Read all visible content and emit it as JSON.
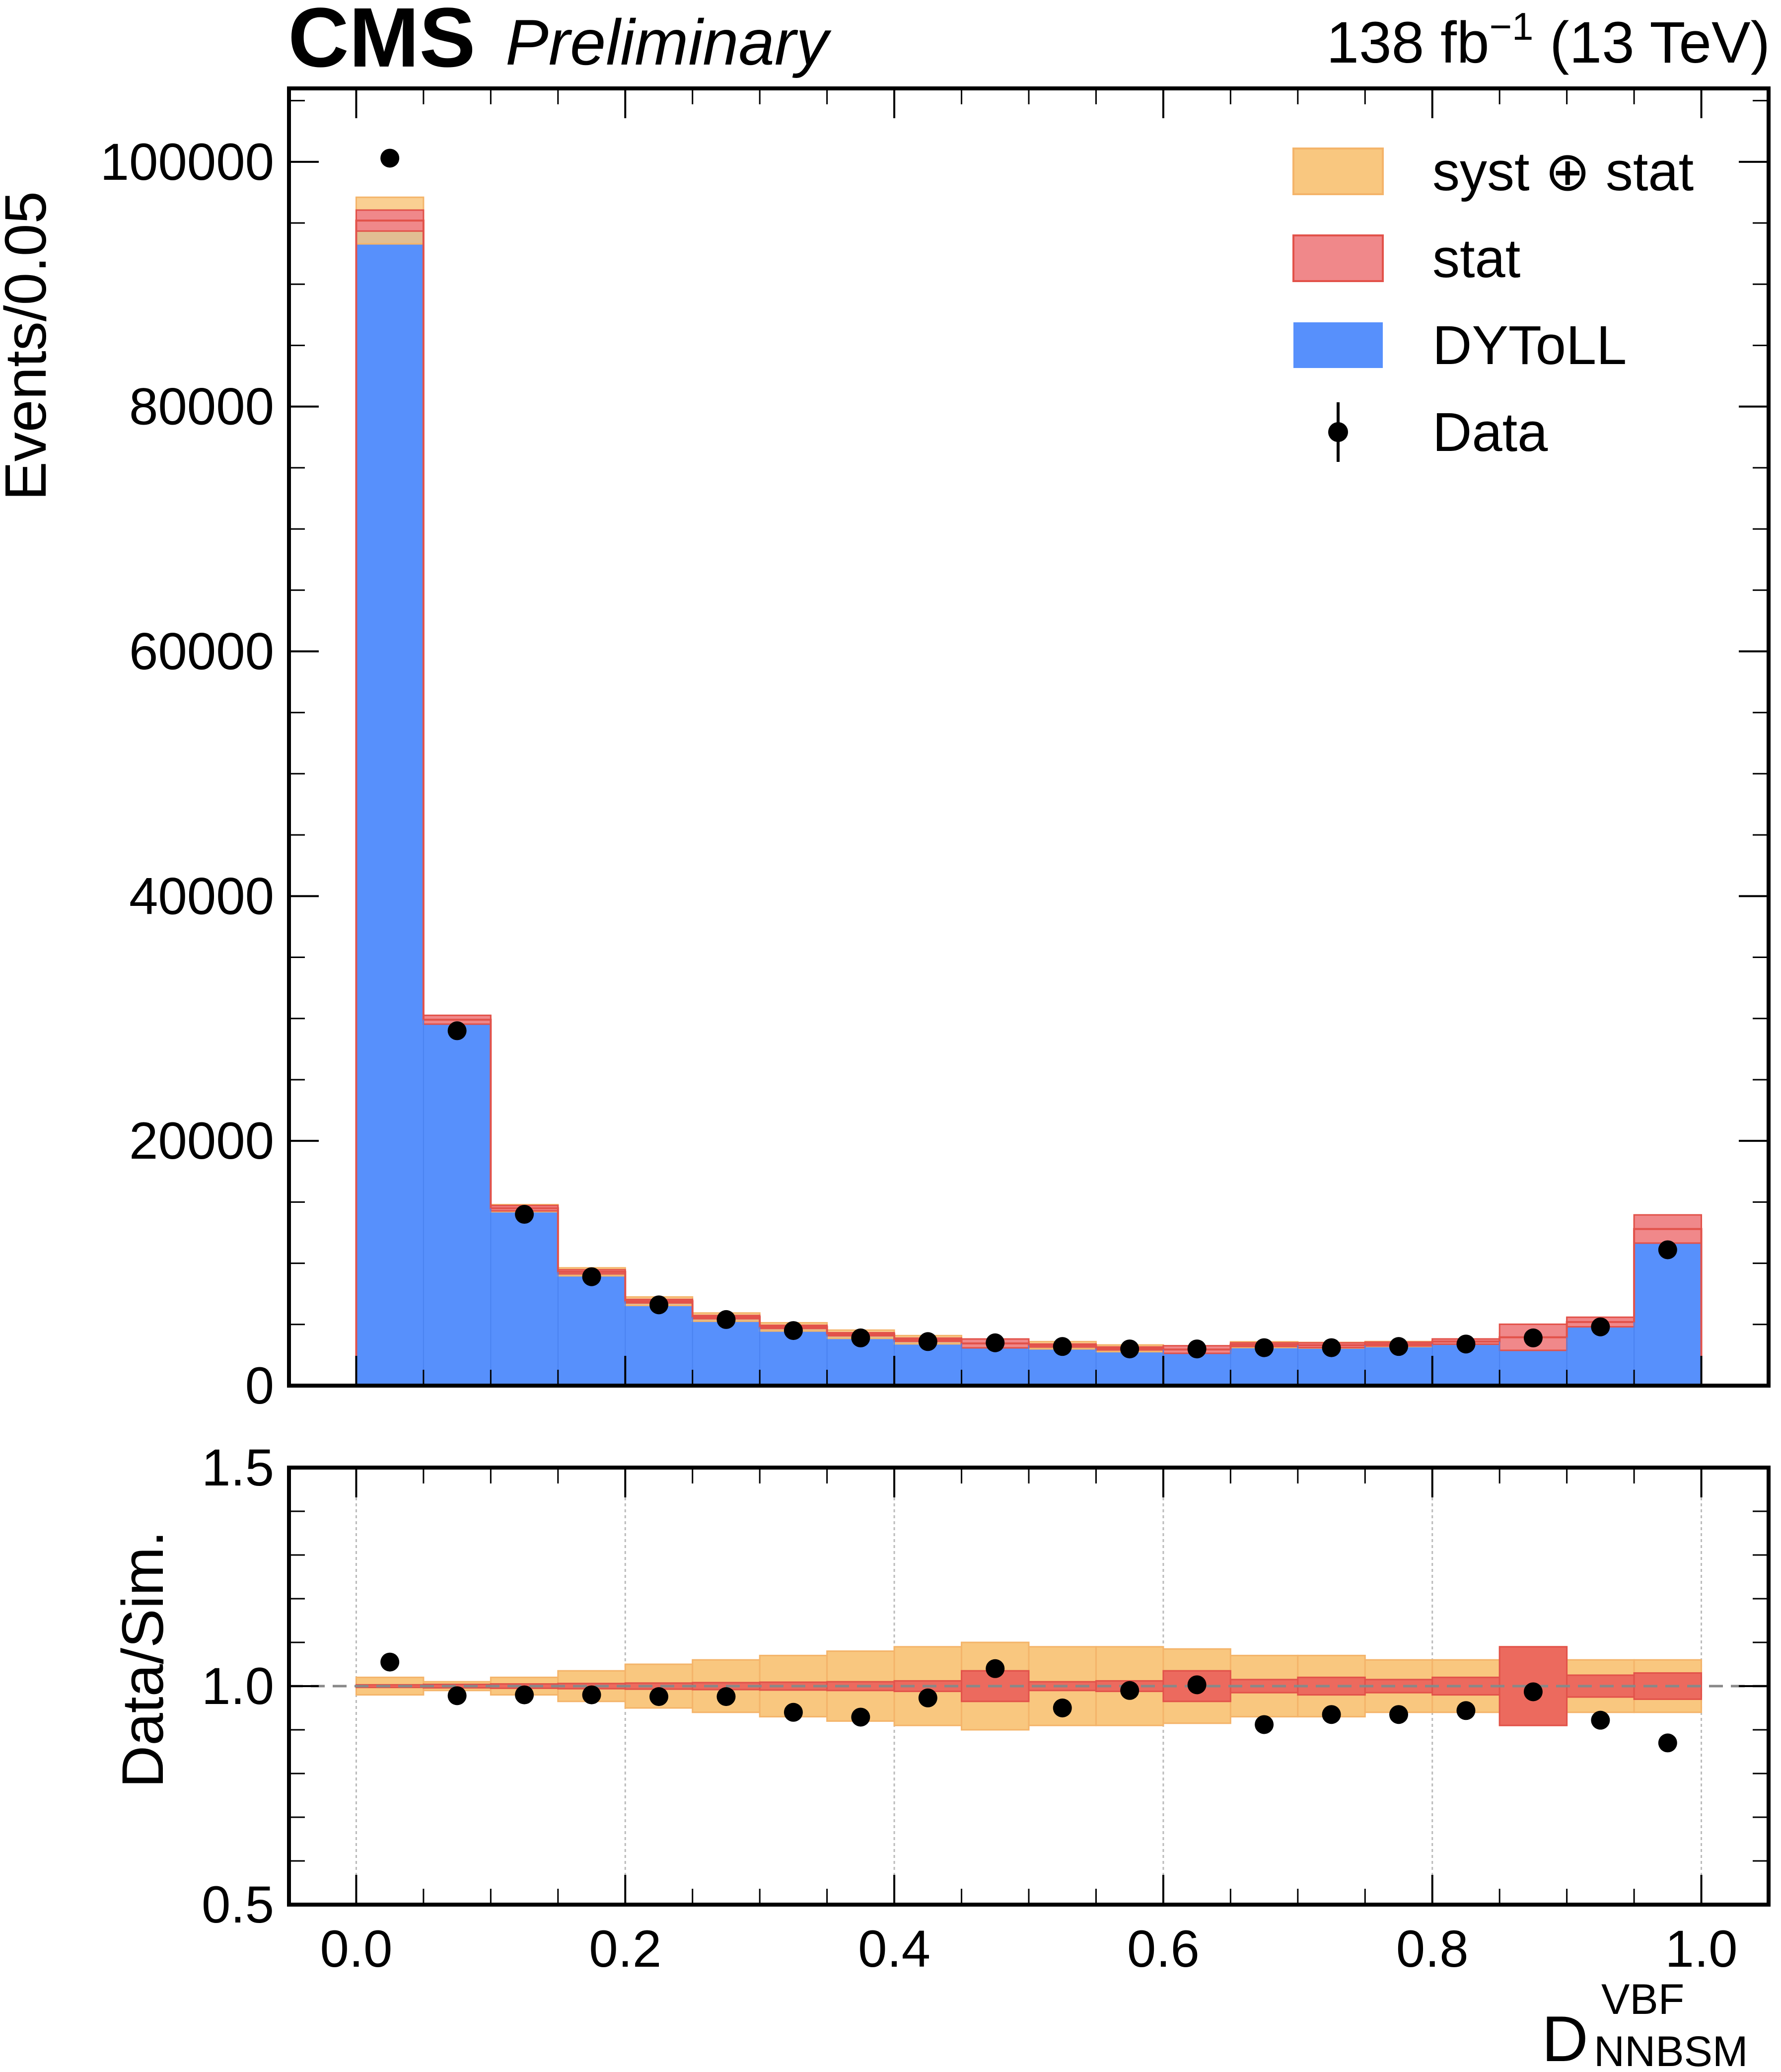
{
  "chart_data": {
    "type": "histogram-with-ratio",
    "header": {
      "experiment": "CMS",
      "status": "Preliminary",
      "lumi_base": "138 fb",
      "lumi_exp": "−1",
      "energy": " (13 TeV)"
    },
    "xlabel": {
      "base": "D",
      "sup": "VBF",
      "sub": "NNBSM"
    },
    "bin_edges": [
      0.0,
      0.05,
      0.1,
      0.15,
      0.2,
      0.25,
      0.3,
      0.35,
      0.4,
      0.45,
      0.5,
      0.55,
      0.6,
      0.65,
      0.7,
      0.75,
      0.8,
      0.85,
      0.9,
      0.95,
      1.0
    ],
    "main": {
      "ylabel": "Events/0.05",
      "ylim": [
        0,
        106000
      ],
      "yticks": [
        0,
        20000,
        40000,
        60000,
        80000,
        100000
      ],
      "ytick_labels": [
        "0",
        "20000",
        "40000",
        "60000",
        "80000",
        "100000"
      ],
      "series": [
        {
          "name": "DYToLL",
          "type": "stacked-hist",
          "color": "#5790fc",
          "values": [
            95200,
            29900,
            14500,
            9300,
            6900,
            5600,
            4800,
            4200,
            3750,
            3450,
            3300,
            3050,
            2950,
            3350,
            3300,
            3400,
            3600,
            3950,
            5200,
            12800
          ]
        },
        {
          "name": "Data",
          "type": "points",
          "color": "#000000",
          "values": [
            100300,
            29000,
            14000,
            8900,
            6600,
            5400,
            4500,
            3900,
            3600,
            3500,
            3200,
            3000,
            3000,
            3100,
            3100,
            3200,
            3400,
            3900,
            4800,
            11100
          ]
        }
      ],
      "stat_rel_unc": [
        0.003,
        0.004,
        0.005,
        0.006,
        0.007,
        0.008,
        0.009,
        0.01,
        0.012,
        0.035,
        0.01,
        0.012,
        0.035,
        0.015,
        0.02,
        0.015,
        0.02,
        0.09,
        0.025,
        0.03
      ],
      "syst_stat_rel_unc": [
        0.02,
        0.01,
        0.02,
        0.035,
        0.05,
        0.06,
        0.07,
        0.08,
        0.09,
        0.1,
        0.09,
        0.09,
        0.085,
        0.07,
        0.07,
        0.06,
        0.06,
        0.09,
        0.06,
        0.06
      ]
    },
    "ratio": {
      "ylabel": "Data/Sim.",
      "ylim": [
        0.5,
        1.5
      ],
      "yticks": [
        0.5,
        1.0,
        1.5
      ],
      "ytick_labels": [
        "0.5",
        "1.0",
        "1.5"
      ],
      "reference_line": 1.0,
      "values": [
        1.055,
        0.978,
        0.98,
        0.98,
        0.976,
        0.976,
        0.94,
        0.929,
        0.973,
        1.04,
        0.95,
        0.99,
        1.003,
        0.912,
        0.935,
        0.935,
        0.944,
        0.987,
        0.922,
        0.87
      ]
    },
    "xticks": [
      0.0,
      0.2,
      0.4,
      0.6,
      0.8,
      1.0
    ],
    "xtick_labels": [
      "0.0",
      "0.2",
      "0.4",
      "0.6",
      "0.8",
      "1.0"
    ],
    "legend": {
      "position": "top-right",
      "items": [
        {
          "label": "syst ⊕ stat",
          "kind": "band",
          "color": "#f9c77f"
        },
        {
          "label": "stat",
          "kind": "band",
          "color": "#f0888a"
        },
        {
          "label": "DYToLL",
          "kind": "fill",
          "color": "#5790fc"
        },
        {
          "label": "Data",
          "kind": "point",
          "color": "#000000"
        }
      ]
    },
    "colors": {
      "dy": "#5790fc",
      "stat_band": "#ec6a5e",
      "stat_band_main": "#f0888a",
      "syst_band": "#f9c77f",
      "syst_edge": "#f4b46a",
      "stat_edge": "#e2524a",
      "ratio_line": "#888888",
      "grid": "#bbbbbb"
    }
  }
}
